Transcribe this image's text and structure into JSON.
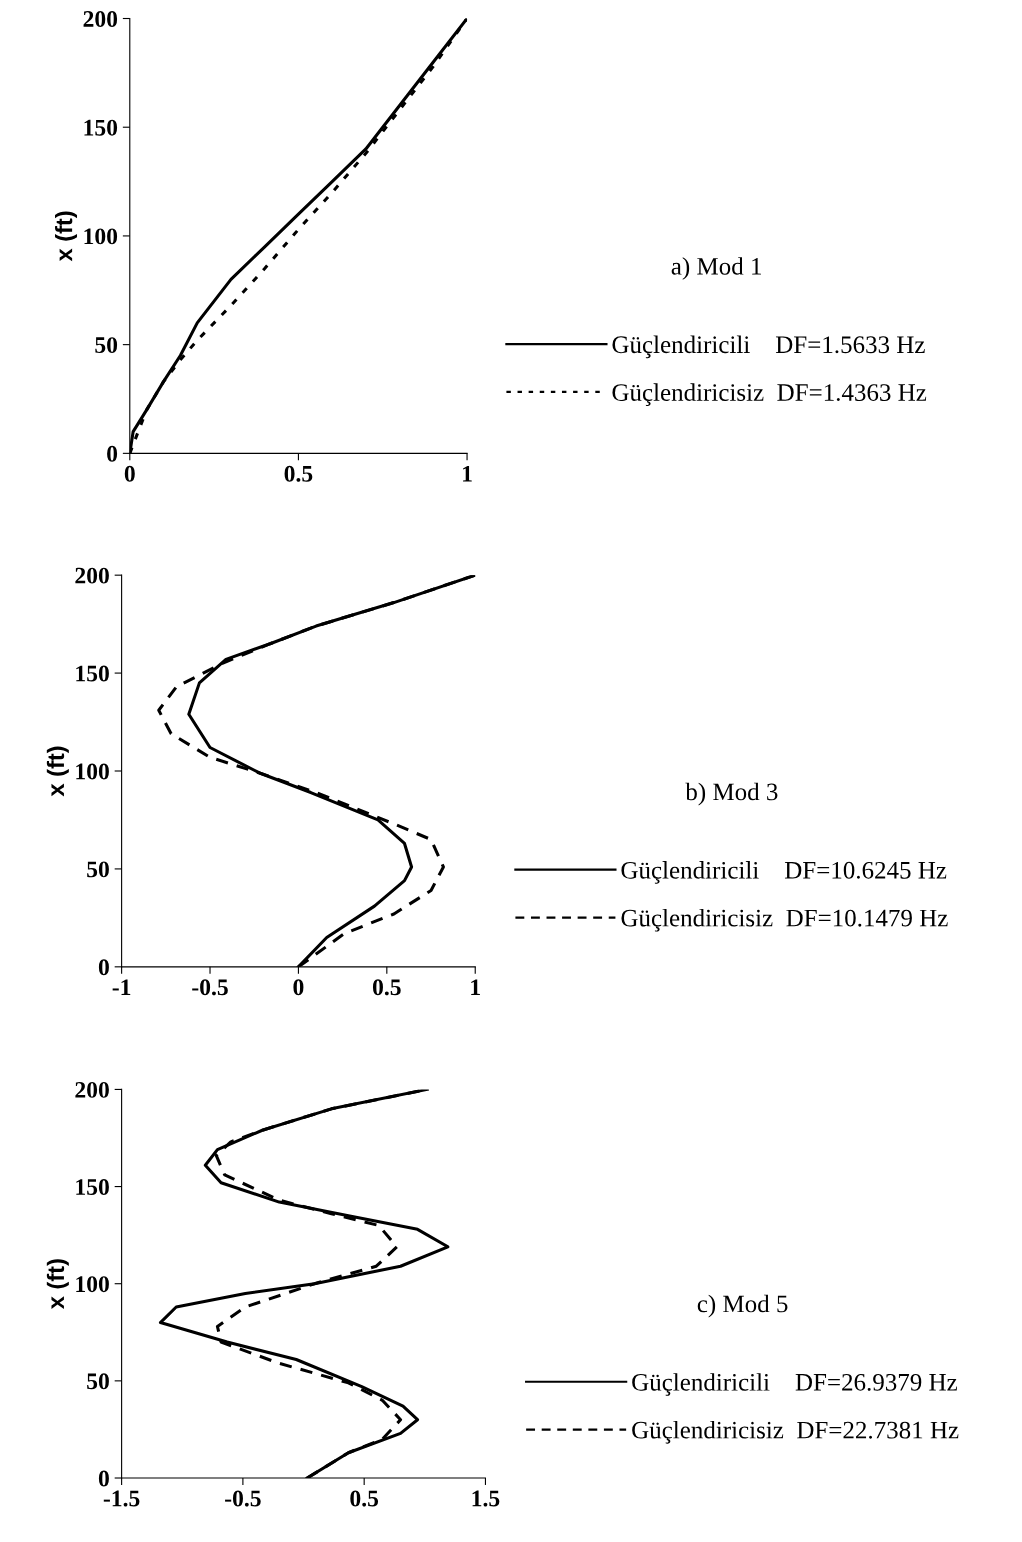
{
  "chart_data": [
    {
      "type": "line",
      "legend_title": "a) Mod 1",
      "ylabel": "x (ft)",
      "xlim": [
        0,
        1
      ],
      "xticks": [
        0,
        0.5,
        1
      ],
      "ylim": [
        0,
        200
      ],
      "yticks": [
        0,
        50,
        100,
        150,
        200
      ],
      "grid": false,
      "legend": "right",
      "series": [
        {
          "name": "Güçlendiricili    DF=1.5633 Hz",
          "color": "#000000",
          "line_style": "solid",
          "x": [
            0,
            0.01,
            0.05,
            0.1,
            0.15,
            0.2,
            0.3,
            0.4,
            0.5,
            0.6,
            0.7,
            0.8,
            0.9,
            1
          ],
          "values": [
            0,
            10,
            20,
            33,
            45,
            60,
            80,
            95,
            110,
            125,
            140,
            160,
            180,
            200
          ]
        },
        {
          "name": "Güçlendiricisiz  DF=1.4363 Hz",
          "color": "#000000",
          "line_style": "dotted",
          "x": [
            0,
            0.05,
            0.1,
            0.15,
            0.2,
            0.3,
            0.4,
            0.5,
            0.6,
            0.7,
            0.8,
            0.9,
            1
          ],
          "values": [
            0,
            20,
            33,
            43,
            52,
            68,
            85,
            103,
            120,
            138,
            158,
            178,
            200
          ]
        }
      ]
    },
    {
      "type": "line",
      "legend_title": "b) Mod 3",
      "ylabel": "x (ft)",
      "xlim": [
        -1,
        1
      ],
      "xticks": [
        -1,
        -0.5,
        0,
        0.5,
        1
      ],
      "ylim": [
        0,
        200
      ],
      "yticks": [
        0,
        50,
        100,
        150,
        200
      ],
      "grid": false,
      "legend": "right",
      "series": [
        {
          "name": "Güçlendiricili    DF=10.6245 Hz",
          "color": "#000000",
          "line_style": "solid",
          "x": [
            0,
            0.16,
            0.43,
            0.6,
            0.64,
            0.6,
            0.45,
            0.07,
            -0.22,
            -0.5,
            -0.62,
            -0.56,
            -0.41,
            -0.16,
            0.1,
            0.54,
            1.0
          ],
          "values": [
            0,
            15,
            31,
            44,
            51,
            63,
            75,
            89,
            99,
            112,
            129,
            145,
            157,
            165,
            174,
            186,
            200
          ]
        },
        {
          "name": "Güçlendiricisiz  DF=10.1479 Hz",
          "color": "#000000",
          "line_style": "dashed",
          "x": [
            0,
            0.26,
            0.54,
            0.75,
            0.82,
            0.75,
            0.54,
            0.1,
            -0.22,
            -0.5,
            -0.72,
            -0.79,
            -0.69,
            -0.43,
            -0.16,
            0.1,
            0.54,
            1.0
          ],
          "values": [
            0,
            17,
            27,
            39,
            51,
            65,
            73,
            89,
            99,
            107,
            119,
            131,
            143,
            155,
            165,
            174,
            186,
            200
          ]
        }
      ]
    },
    {
      "type": "line",
      "legend_title": "c) Mod 5",
      "ylabel": "x (ft)",
      "xlim": [
        -1.5,
        1.5
      ],
      "xticks": [
        -1.5,
        -0.5,
        0.5,
        1.5
      ],
      "ylim": [
        0,
        200
      ],
      "yticks": [
        0,
        50,
        100,
        150,
        200
      ],
      "grid": false,
      "legend": "right",
      "series": [
        {
          "name": "Güçlendiricili    DF=26.9379 Hz",
          "color": "#000000",
          "line_style": "solid",
          "x": [
            0.03,
            0.37,
            0.8,
            0.94,
            0.82,
            0.48,
            -0.06,
            -0.63,
            -1.18,
            -1.05,
            -0.48,
            0.09,
            0.8,
            1.19,
            0.94,
            0.37,
            -0.2,
            -0.68,
            -0.81,
            -0.71,
            -0.34,
            0.23,
            1.02
          ],
          "values": [
            0,
            13,
            23,
            30,
            37,
            47,
            61,
            70,
            80,
            88,
            95,
            100,
            109,
            119,
            128,
            135,
            142,
            152,
            161,
            169,
            179,
            190,
            200
          ]
        },
        {
          "name": "Güçlendiricisiz  DF=22.7381 Hz",
          "color": "#000000",
          "line_style": "dashed",
          "x": [
            0.03,
            0.37,
            0.65,
            0.8,
            0.65,
            0.37,
            -0.2,
            -0.68,
            -0.71,
            -0.48,
            0.09,
            0.6,
            0.77,
            0.62,
            0.23,
            -0.2,
            -0.65,
            -0.72,
            -0.6,
            -0.34,
            0.23,
            1.02
          ],
          "values": [
            0,
            13,
            20,
            30,
            40,
            49,
            59,
            70,
            78,
            88,
            100,
            109,
            119,
            130,
            136,
            143,
            156,
            166,
            173,
            179,
            190,
            200
          ]
        }
      ]
    }
  ]
}
